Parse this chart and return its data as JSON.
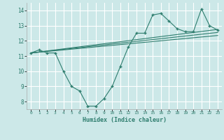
{
  "title": "",
  "xlabel": "Humidex (Indice chaleur)",
  "xlim": [
    -0.5,
    23.5
  ],
  "ylim": [
    7.5,
    14.5
  ],
  "xticks": [
    0,
    1,
    2,
    3,
    4,
    5,
    6,
    7,
    8,
    9,
    10,
    11,
    12,
    13,
    14,
    15,
    16,
    17,
    18,
    19,
    20,
    21,
    22,
    23
  ],
  "yticks": [
    8,
    9,
    10,
    11,
    12,
    13,
    14
  ],
  "bg_color": "#cce8e8",
  "grid_color": "#ffffff",
  "line_color": "#2e7d6e",
  "line1_x": [
    0,
    1,
    2,
    3,
    4,
    5,
    6,
    7,
    8,
    9,
    10,
    11,
    12,
    13,
    14,
    15,
    16,
    17,
    18,
    19,
    20,
    21,
    22,
    23
  ],
  "line1_y": [
    11.2,
    11.4,
    11.2,
    11.2,
    10.0,
    9.0,
    8.7,
    7.7,
    7.7,
    8.2,
    9.0,
    10.3,
    11.6,
    12.5,
    12.5,
    13.7,
    13.8,
    13.3,
    12.8,
    12.6,
    12.6,
    14.1,
    13.0,
    12.7
  ],
  "line2_x": [
    0,
    23
  ],
  "line2_y": [
    11.2,
    12.75
  ],
  "line3_x": [
    0,
    23
  ],
  "line3_y": [
    11.2,
    12.55
  ],
  "line4_x": [
    0,
    23
  ],
  "line4_y": [
    11.2,
    12.35
  ]
}
